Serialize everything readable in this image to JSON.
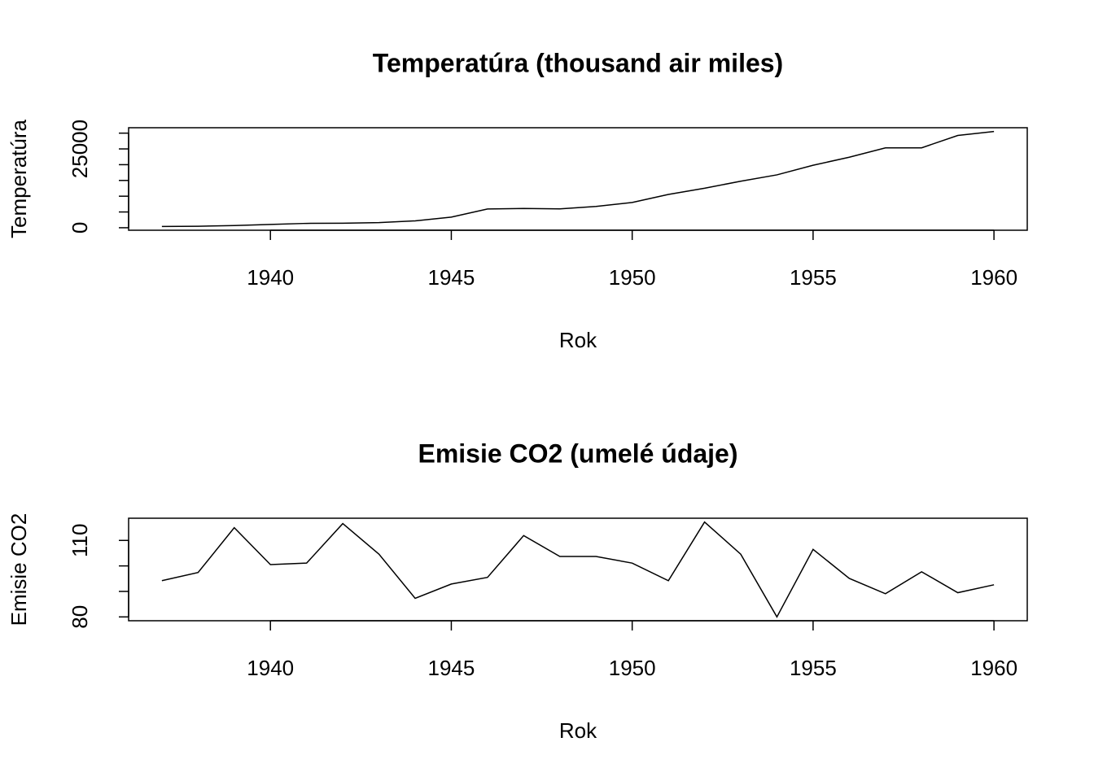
{
  "chart_data": [
    {
      "type": "line",
      "title": "Temperatúra (thousand air miles)",
      "x_label": "Rok",
      "y_label": "Temperatúra",
      "x": [
        1937,
        1938,
        1939,
        1940,
        1941,
        1942,
        1943,
        1944,
        1945,
        1946,
        1947,
        1948,
        1949,
        1950,
        1951,
        1952,
        1953,
        1954,
        1955,
        1956,
        1957,
        1958,
        1959,
        1960
      ],
      "series": [
        {
          "color": "#000000",
          "values": [
            412,
            480,
            683,
            1052,
            1385,
            1418,
            1634,
            2178,
            3362,
            5948,
            6109,
            5981,
            6753,
            8003,
            10566,
            12528,
            14760,
            16769,
            19819,
            22362,
            25340,
            25343,
            29269,
            30514
          ]
        }
      ],
      "xlim": [
        1936.08,
        1960.92
      ],
      "xticks": [
        1940,
        1945,
        1950,
        1955,
        1960
      ],
      "ylim": [
        -792,
        31718
      ],
      "yticks": [
        0,
        25000
      ],
      "yticks_minor": [
        5000,
        10000,
        15000,
        20000,
        30000
      ]
    },
    {
      "type": "line",
      "title": "Emisie CO2 (umelé údaje)",
      "x_label": "Rok",
      "y_label": "Emisie CO2",
      "x": [
        1937,
        1938,
        1939,
        1940,
        1941,
        1942,
        1943,
        1944,
        1945,
        1946,
        1947,
        1948,
        1949,
        1950,
        1951,
        1952,
        1953,
        1954,
        1955,
        1956,
        1957,
        1958,
        1959,
        1960
      ],
      "series": [
        {
          "color": "#000000",
          "values": [
            94.2,
            97.4,
            115.0,
            100.5,
            101.1,
            116.6,
            104.6,
            87.3,
            92.9,
            95.5,
            111.9,
            103.7,
            103.7,
            101.1,
            94.2,
            117.2,
            104.6,
            80.0,
            106.5,
            95.1,
            89.1,
            97.7,
            89.5,
            92.6
          ]
        }
      ],
      "xlim": [
        1936.08,
        1960.92
      ],
      "xticks": [
        1940,
        1945,
        1950,
        1955,
        1960
      ],
      "ylim": [
        78.5,
        118.7
      ],
      "yticks": [
        80,
        110
      ],
      "yticks_minor": [
        90,
        100
      ]
    }
  ]
}
